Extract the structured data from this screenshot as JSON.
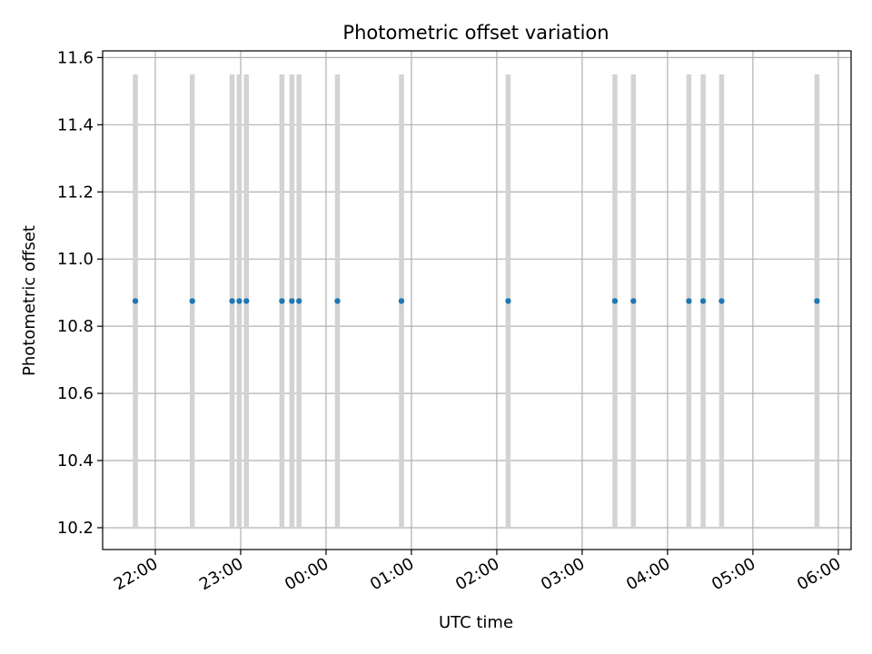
{
  "chart_data": {
    "type": "scatter",
    "title": "Photometric offset variation",
    "xlabel": "UTC time",
    "ylabel": "Photometric offset",
    "x_ticks": [
      "22:00",
      "23:00",
      "00:00",
      "01:00",
      "02:00",
      "03:00",
      "04:00",
      "05:00",
      "06:00"
    ],
    "y_ticks": [
      "10.2",
      "10.4",
      "10.6",
      "10.8",
      "11.0",
      "11.2",
      "11.4",
      "11.6"
    ],
    "ylim": [
      10.135,
      11.62
    ],
    "xlim": [
      "21:23",
      "06:09"
    ],
    "grid": true,
    "series": [
      {
        "color": "#1f77b4",
        "x": [
          "21:46",
          "22:26",
          "22:54",
          "22:59",
          "23:04",
          "23:29",
          "23:36",
          "23:41",
          "00:08",
          "00:53",
          "02:08",
          "03:23",
          "03:36",
          "04:15",
          "04:25",
          "04:38",
          "05:45"
        ],
        "y": [
          10.875,
          10.875,
          10.875,
          10.875,
          10.875,
          10.875,
          10.875,
          10.875,
          10.875,
          10.875,
          10.875,
          10.875,
          10.875,
          10.875,
          10.875,
          10.875,
          10.875
        ],
        "error_range": [
          10.2,
          11.55
        ],
        "error_color": "#d3d3d3"
      }
    ]
  }
}
